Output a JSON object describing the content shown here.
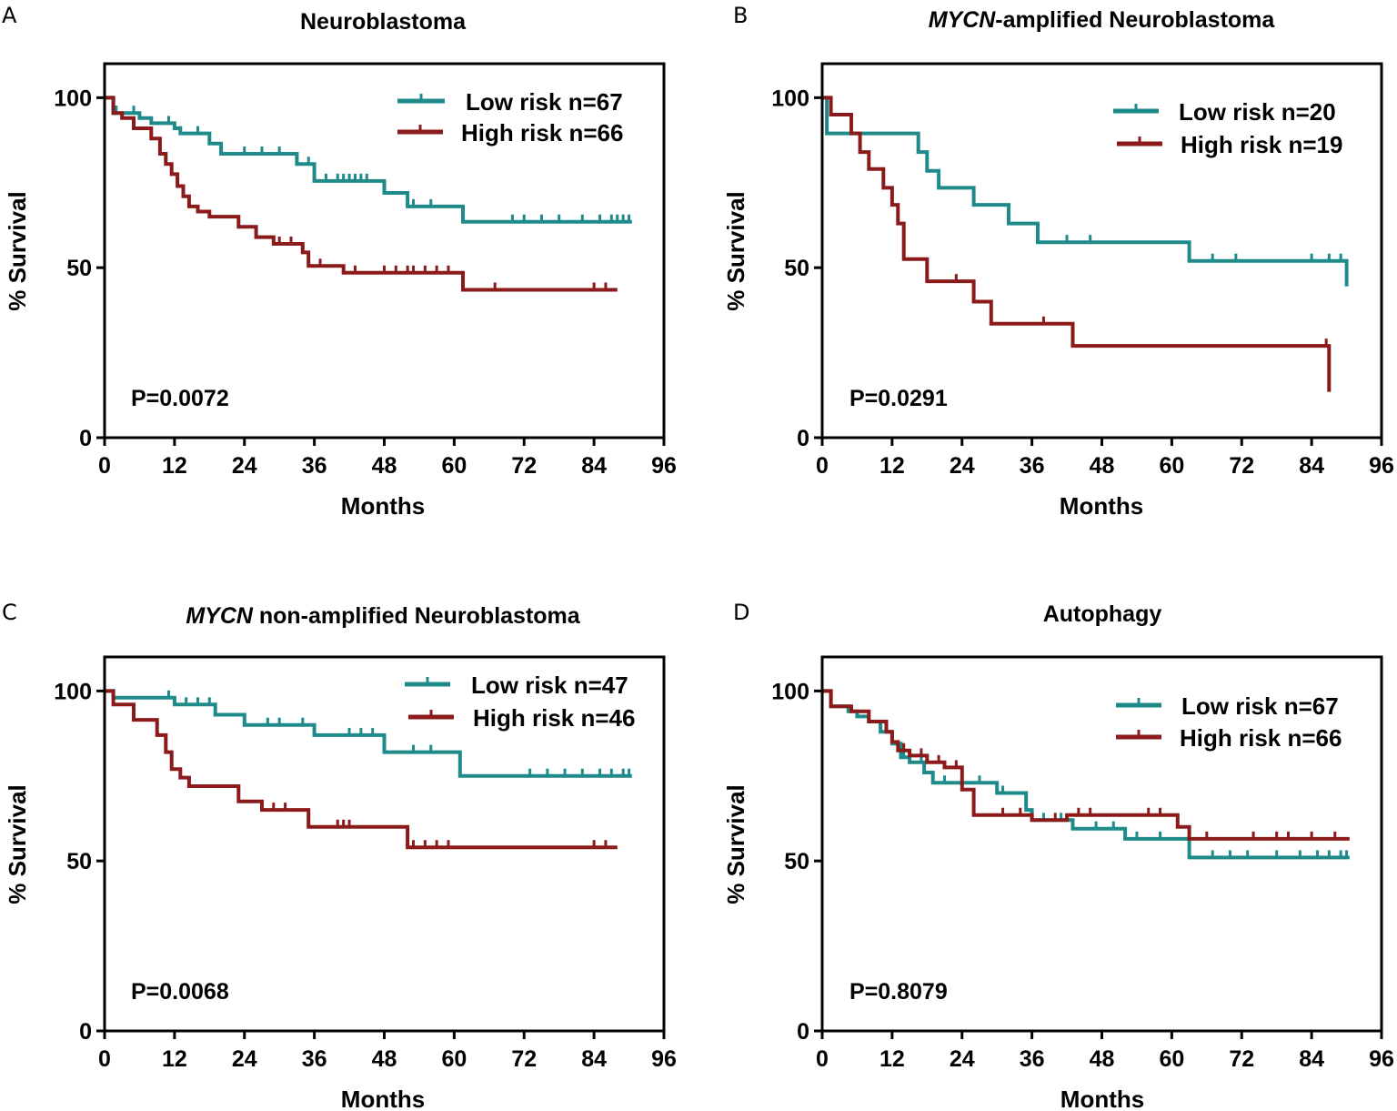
{
  "colors": {
    "low": "#1f8a8a",
    "high": "#8b1a1a",
    "axis": "#000000"
  },
  "chart_data": [
    {
      "panel": "A",
      "type": "line",
      "title": "Neuroblastoma",
      "title_prefix": "",
      "title_suffix": "Neuroblastoma",
      "xlabel": "Months",
      "ylabel": "% Survival",
      "xlim": [
        0,
        96
      ],
      "ylim": [
        0,
        110
      ],
      "xticks": [
        0,
        12,
        24,
        36,
        48,
        60,
        72,
        84,
        96
      ],
      "yticks": [
        0,
        50,
        100
      ],
      "p_value": "P=0.0072",
      "legend_position": "top-right",
      "series": [
        {
          "name": "Low risk n=67",
          "key": "low",
          "x": [
            0,
            1.5,
            6,
            8,
            12,
            13,
            18,
            20,
            33,
            36,
            48,
            52,
            60,
            61.5,
            90.5
          ],
          "y": [
            100,
            95.5,
            94,
            92.5,
            91,
            89.5,
            86.5,
            83.5,
            80.5,
            75.5,
            72,
            68,
            68,
            63.5,
            63.5
          ],
          "censors": [
            2,
            5,
            11,
            13,
            16,
            20,
            24,
            27,
            30,
            33,
            35,
            38,
            40,
            41,
            42,
            43,
            44,
            45,
            53,
            56,
            70,
            72,
            75,
            78,
            82,
            85,
            87,
            88,
            89,
            90
          ]
        },
        {
          "name": "High risk n=66",
          "key": "high",
          "x": [
            0,
            1.5,
            3,
            5,
            8,
            9.5,
            10.5,
            11.5,
            12.5,
            13.5,
            14.5,
            16,
            18,
            23,
            26,
            29,
            34,
            35,
            41,
            61.5,
            88
          ],
          "y": [
            100,
            95.5,
            94,
            91,
            88,
            83.5,
            80.5,
            77.5,
            74,
            71,
            68,
            66.5,
            65,
            62,
            59,
            57,
            54.5,
            50.5,
            48.5,
            43.5,
            43.5
          ],
          "censors": [
            30,
            32,
            37,
            43,
            48,
            50,
            52,
            53,
            55,
            57,
            59,
            67,
            84,
            86
          ]
        }
      ]
    },
    {
      "panel": "B",
      "type": "line",
      "title": "MYCN-amplified Neuroblastoma",
      "title_prefix": "MYCN",
      "title_suffix": "-amplified Neuroblastoma",
      "xlabel": "Months",
      "ylabel": "% Survival",
      "xlim": [
        0,
        96
      ],
      "ylim": [
        0,
        110
      ],
      "xticks": [
        0,
        12,
        24,
        36,
        48,
        60,
        72,
        84,
        96
      ],
      "yticks": [
        0,
        50,
        100
      ],
      "p_value": "P=0.0291",
      "legend_position": "top-right",
      "series": [
        {
          "name": "Low risk n=20",
          "key": "low",
          "x": [
            0,
            0.8,
            15,
            16.5,
            18,
            20,
            26,
            32,
            37,
            63,
            90
          ],
          "y": [
            100,
            89.5,
            89.5,
            84,
            78.5,
            73.5,
            68.5,
            63,
            57.5,
            52,
            44.5
          ],
          "censors": [
            42,
            46,
            67,
            71,
            84,
            87,
            89
          ]
        },
        {
          "name": "High risk n=19",
          "key": "high",
          "x": [
            0,
            1.5,
            5,
            6.5,
            8,
            10.5,
            12,
            13,
            14,
            18,
            26,
            29,
            43,
            87
          ],
          "y": [
            100,
            95,
            89.5,
            84,
            79,
            73.5,
            68.5,
            63,
            52.5,
            46,
            40,
            33.5,
            27,
            13.5
          ],
          "censors": [
            23,
            38,
            86.5
          ]
        }
      ]
    },
    {
      "panel": "C",
      "type": "line",
      "title": "MYCN non-amplified Neuroblastoma",
      "title_prefix": "MYCN",
      "title_suffix": " non-amplified Neuroblastoma",
      "xlabel": "Months",
      "ylabel": "% Survival",
      "xlim": [
        0,
        96
      ],
      "ylim": [
        0,
        110
      ],
      "xticks": [
        0,
        12,
        24,
        36,
        48,
        60,
        72,
        84,
        96
      ],
      "yticks": [
        0,
        50,
        100
      ],
      "p_value": "P=0.0068",
      "legend_position": "top-right",
      "series": [
        {
          "name": "Low risk n=47",
          "key": "low",
          "x": [
            0,
            1.5,
            12,
            19,
            24,
            36,
            48,
            61,
            90.5
          ],
          "y": [
            100,
            98,
            96,
            93,
            90,
            87,
            82,
            75,
            75
          ],
          "censors": [
            11,
            14,
            16,
            18,
            28,
            30,
            34,
            36,
            42,
            44,
            46,
            53,
            56,
            73,
            76,
            79,
            82,
            85,
            87,
            89,
            90
          ]
        },
        {
          "name": "High risk n=46",
          "key": "high",
          "x": [
            0,
            1.5,
            5,
            9,
            10.5,
            11.5,
            13,
            14.5,
            23,
            27,
            35,
            52,
            88
          ],
          "y": [
            100,
            96,
            91.5,
            87,
            82,
            77,
            74.5,
            72,
            67.5,
            65,
            60,
            54,
            54
          ],
          "censors": [
            29,
            31,
            40,
            41,
            42,
            53,
            55,
            57,
            59,
            84,
            86
          ]
        }
      ]
    },
    {
      "panel": "D",
      "type": "line",
      "title": "Autophagy",
      "title_prefix": "",
      "title_suffix": "Autophagy",
      "xlabel": "Months",
      "ylabel": "% Survival",
      "xlim": [
        0,
        96
      ],
      "ylim": [
        0,
        110
      ],
      "xticks": [
        0,
        12,
        24,
        36,
        48,
        60,
        72,
        84,
        96
      ],
      "yticks": [
        0,
        50,
        100
      ],
      "p_value": "P=0.8079",
      "legend_position": "top-right",
      "series": [
        {
          "name": "Low risk n=67",
          "key": "low",
          "x": [
            0,
            1.5,
            4.5,
            6,
            8,
            10,
            12,
            13.5,
            15,
            17.5,
            19,
            25,
            30,
            35,
            36,
            43,
            52,
            63,
            90.5
          ],
          "y": [
            100,
            95.5,
            94,
            92.5,
            91,
            88,
            84.5,
            80.5,
            79,
            76,
            73,
            73,
            70,
            65,
            62,
            59.5,
            56.5,
            51,
            51
          ],
          "censors": [
            14,
            17,
            21,
            24,
            27,
            31,
            38,
            41,
            47,
            50,
            54,
            58,
            67,
            70,
            73,
            78,
            82,
            85,
            87,
            89,
            90
          ]
        },
        {
          "name": "High risk n=66",
          "key": "high",
          "x": [
            0,
            1.5,
            5,
            8,
            11,
            12,
            13,
            15,
            18,
            21,
            24,
            26,
            36,
            42,
            61,
            63,
            90.5
          ],
          "y": [
            100,
            95.5,
            94,
            91,
            88,
            85,
            82.5,
            81,
            79,
            77.5,
            71,
            63.5,
            62,
            63.5,
            60,
            56.5,
            56.5
          ],
          "censors": [
            14,
            17,
            20,
            23,
            31,
            34,
            40,
            44,
            46,
            56,
            58,
            63,
            66,
            74,
            78,
            80,
            84,
            88
          ]
        }
      ]
    }
  ]
}
